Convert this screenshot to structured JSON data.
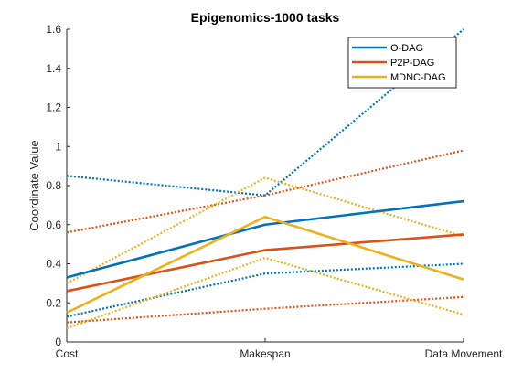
{
  "chart_data": {
    "type": "line",
    "title": "Epigenomics-1000 tasks",
    "xlabel": "",
    "ylabel": "Coordinate Value",
    "categories": [
      "Cost",
      "Makespan",
      "Data Movement"
    ],
    "ylim": [
      0,
      1.6
    ],
    "yticks": [
      "0",
      "0.2",
      "0.4",
      "0.6",
      "0.8",
      "1",
      "1.2",
      "1.4",
      "1.6"
    ],
    "legend_position": "top-right",
    "grid": false,
    "series": [
      {
        "name": "O-DAG",
        "color": "#0072BD",
        "style": "solid",
        "values": [
          0.33,
          0.6,
          0.72
        ]
      },
      {
        "name": "P2P-DAG",
        "color": "#D95319",
        "style": "solid",
        "values": [
          0.26,
          0.47,
          0.55
        ]
      },
      {
        "name": "MDNC-DAG",
        "color": "#EDB120",
        "style": "solid",
        "values": [
          0.15,
          0.64,
          0.32
        ]
      },
      {
        "name": "",
        "color": "#0072BD",
        "style": "dotted",
        "values": [
          0.85,
          0.75,
          1.6
        ]
      },
      {
        "name": "",
        "color": "#0072BD",
        "style": "dotted",
        "values": [
          0.13,
          0.35,
          0.4
        ]
      },
      {
        "name": "",
        "color": "#D95319",
        "style": "dotted",
        "values": [
          0.56,
          0.75,
          0.98
        ]
      },
      {
        "name": "",
        "color": "#D95319",
        "style": "dotted",
        "values": [
          0.1,
          0.17,
          0.23
        ]
      },
      {
        "name": "",
        "color": "#EDB120",
        "style": "dotted",
        "values": [
          0.3,
          0.84,
          0.54
        ]
      },
      {
        "name": "",
        "color": "#EDB120",
        "style": "dotted",
        "values": [
          0.07,
          0.43,
          0.14
        ]
      }
    ]
  }
}
